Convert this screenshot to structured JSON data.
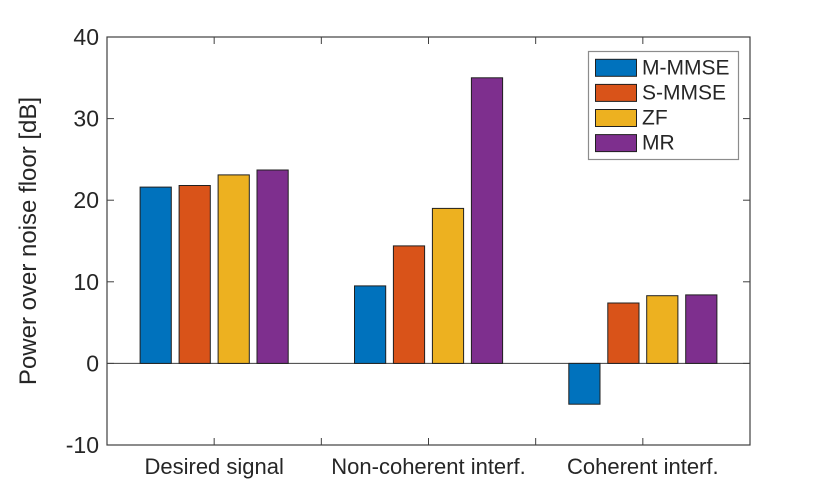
{
  "chart_data": {
    "type": "bar",
    "title": "",
    "ylabel": "Power over noise floor [dB]",
    "xlabel": "",
    "categories": [
      "Desired signal",
      "Non-coherent interf.",
      "Coherent interf."
    ],
    "series": [
      {
        "name": "M-MMSE",
        "color": "#0072BD",
        "values": [
          21.6,
          9.5,
          -5.0
        ]
      },
      {
        "name": "S-MMSE",
        "color": "#D95319",
        "values": [
          21.8,
          14.4,
          7.4
        ]
      },
      {
        "name": "ZF",
        "color": "#EDB120",
        "values": [
          23.1,
          19.0,
          8.3
        ]
      },
      {
        "name": "MR",
        "color": "#7E2F8E",
        "values": [
          23.7,
          35.0,
          8.4
        ]
      }
    ],
    "ylim": [
      -10,
      40
    ],
    "yticks": [
      40,
      30,
      20,
      10,
      0,
      -10
    ],
    "ytick_labels": [
      "40",
      "30",
      "20",
      "10",
      "0",
      "-10"
    ],
    "bar_baseline": 0,
    "grid": false,
    "legend_position": "top-right",
    "colors": {
      "background": "#ffffff",
      "axis": "#3f3f3f",
      "text": "#262626",
      "bar_edge": "#202020",
      "legend_border": "#8c8c8c"
    }
  }
}
